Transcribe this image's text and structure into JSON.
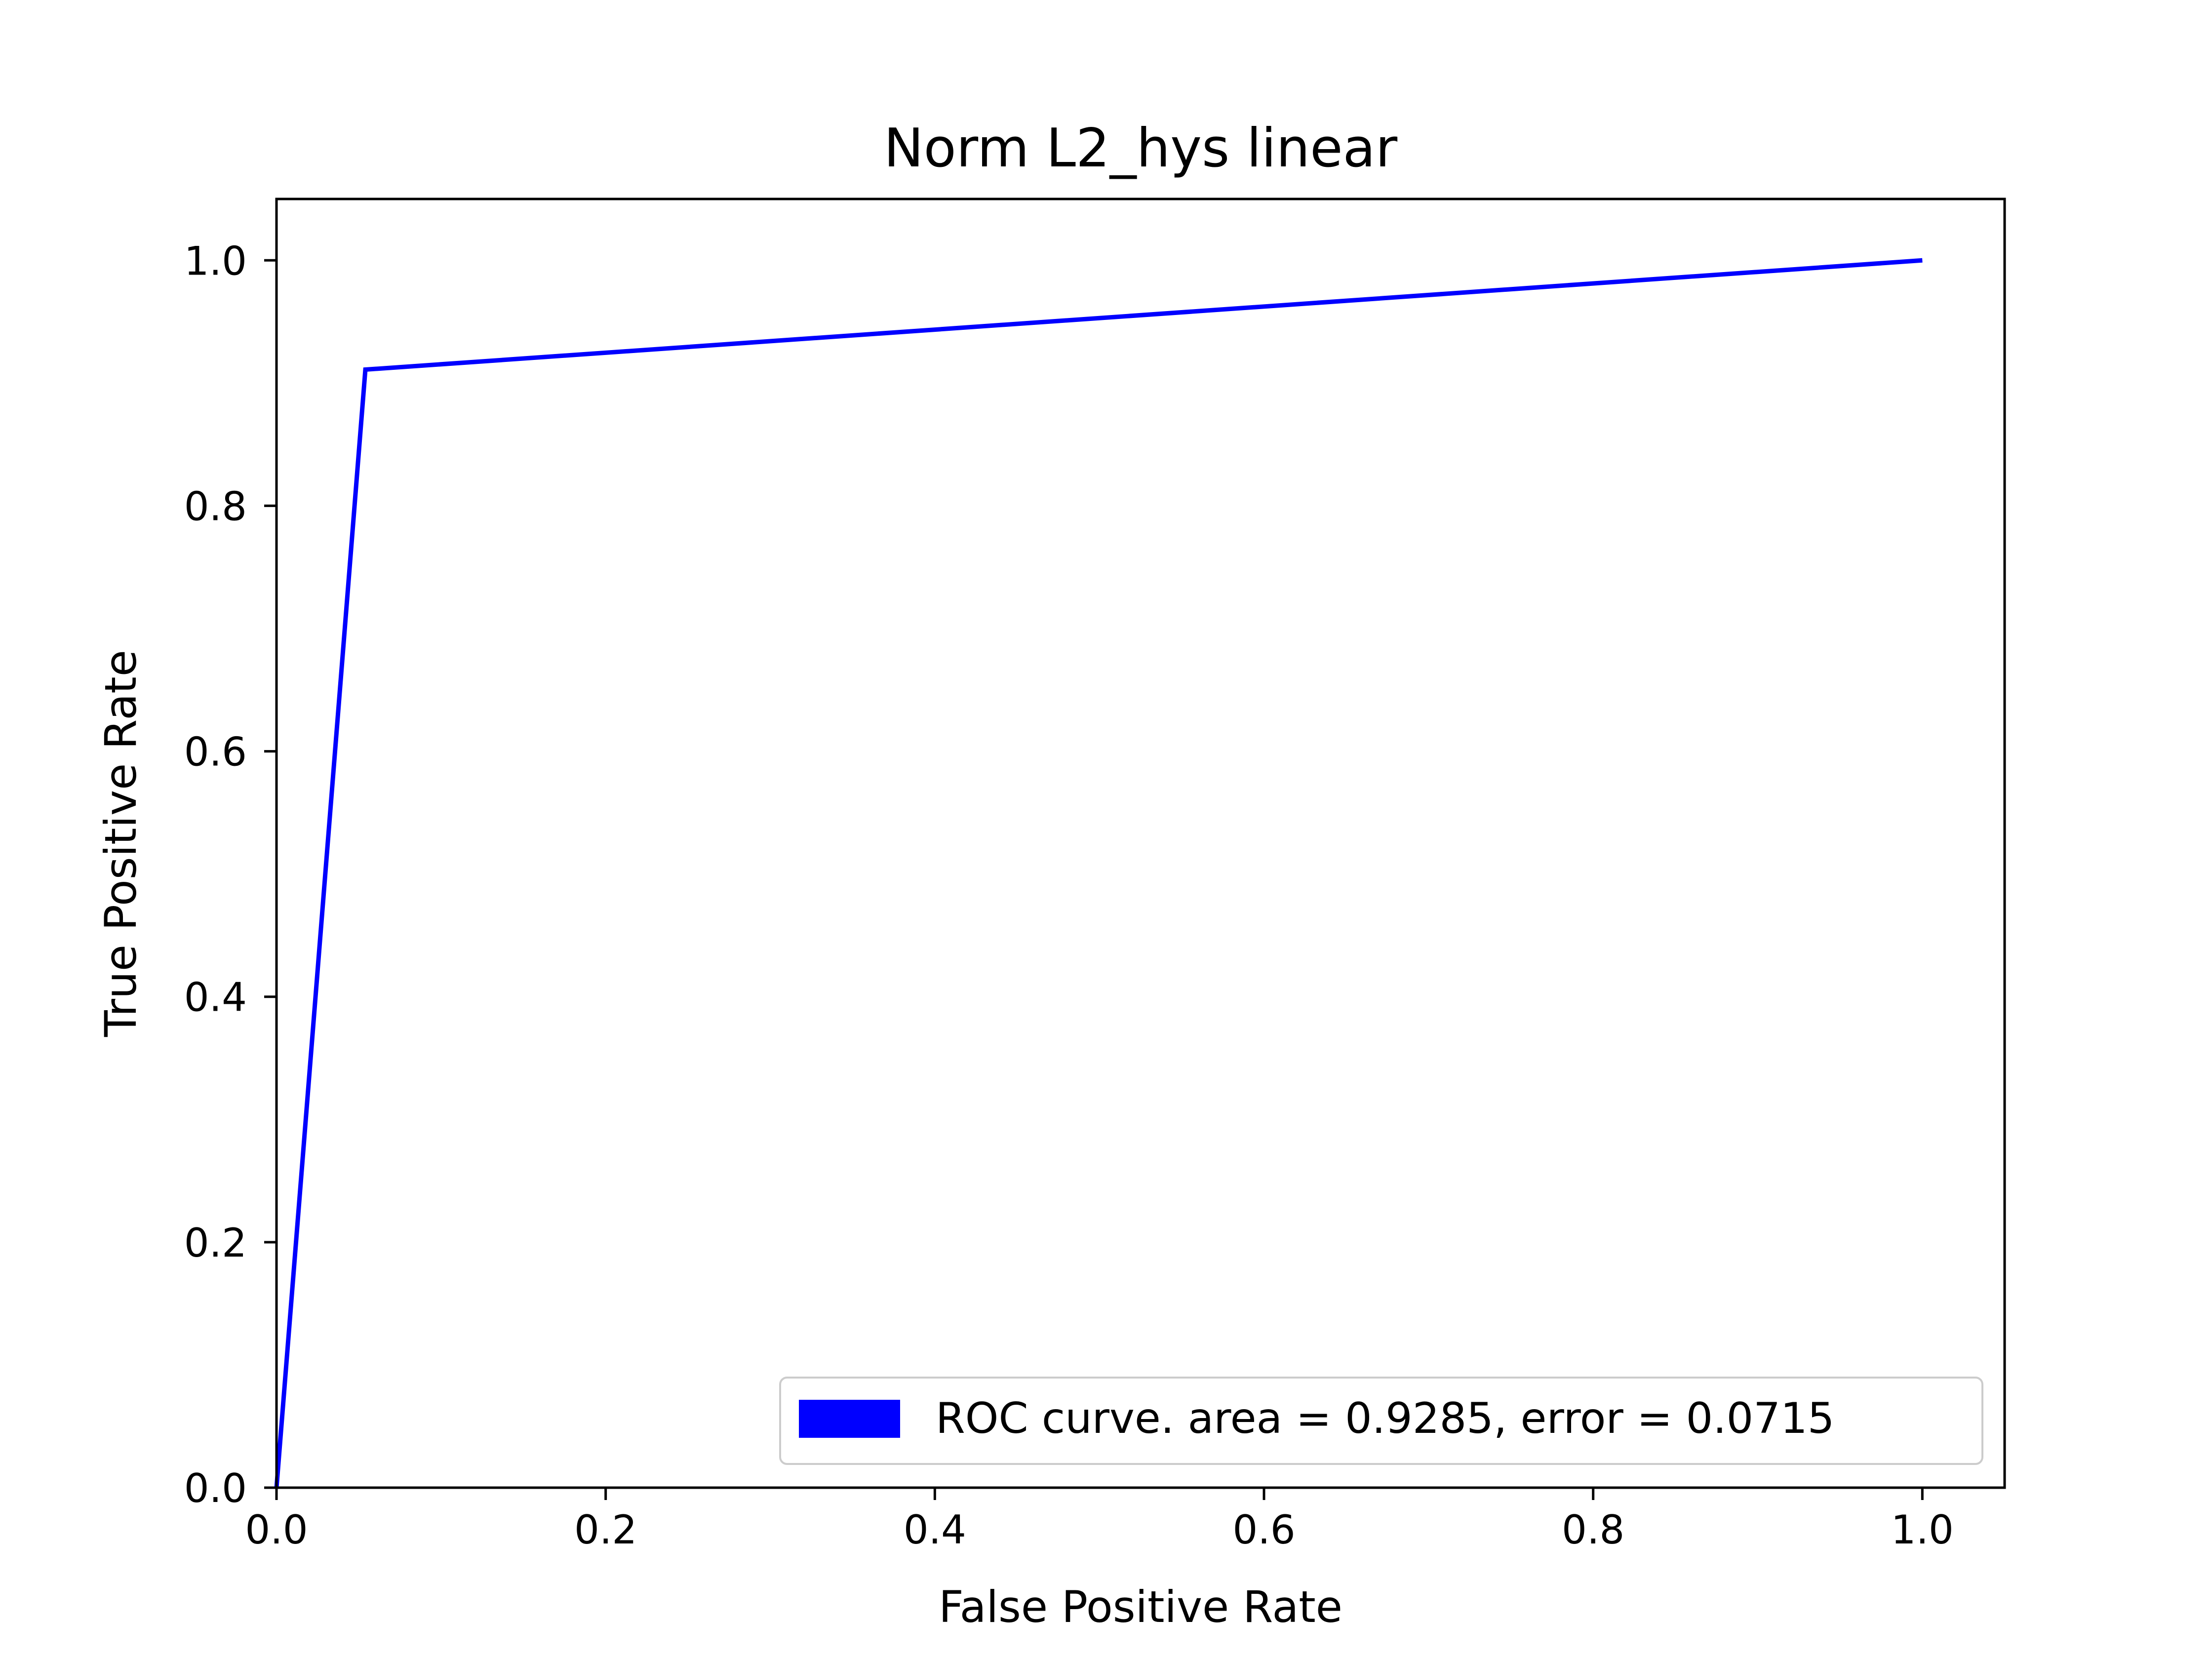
{
  "chart_data": {
    "type": "line",
    "title": "Norm L2_hys linear",
    "xlabel": "False Positive Rate",
    "ylabel": "True Positive Rate",
    "xlim": [
      0.0,
      1.05
    ],
    "ylim": [
      0.0,
      1.05
    ],
    "x_ticks": [
      "0.0",
      "0.2",
      "0.4",
      "0.6",
      "0.8",
      "1.0"
    ],
    "y_ticks": [
      "0.0",
      "0.2",
      "0.4",
      "0.6",
      "0.8",
      "1.0"
    ],
    "x_tick_values": [
      0.0,
      0.2,
      0.4,
      0.6,
      0.8,
      1.0
    ],
    "y_tick_values": [
      0.0,
      0.2,
      0.4,
      0.6,
      0.8,
      1.0
    ],
    "grid": false,
    "legend_position": "lower-right",
    "series": [
      {
        "name": "ROC curve. area = 0.9285, error = 0.0715",
        "color": "#0000ff",
        "x": [
          0.0,
          0.054,
          1.0
        ],
        "y": [
          0.0,
          0.911,
          1.0
        ]
      }
    ]
  }
}
